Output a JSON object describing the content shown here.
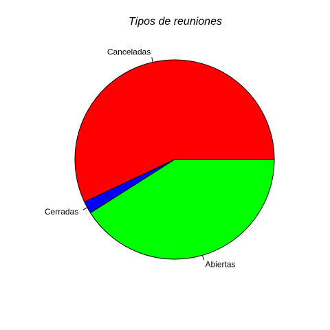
{
  "chart_data": {
    "type": "pie",
    "title": "Tipos de reuniones",
    "direction": "counterclockwise",
    "start": "3 o'clock",
    "slices": [
      {
        "label": "Canceladas",
        "value": 57,
        "color": "#ff0000"
      },
      {
        "label": "Cerradas",
        "value": 2,
        "color": "#0000ff"
      },
      {
        "label": "Abiertas",
        "value": 41,
        "color": "#00ff00"
      }
    ]
  }
}
